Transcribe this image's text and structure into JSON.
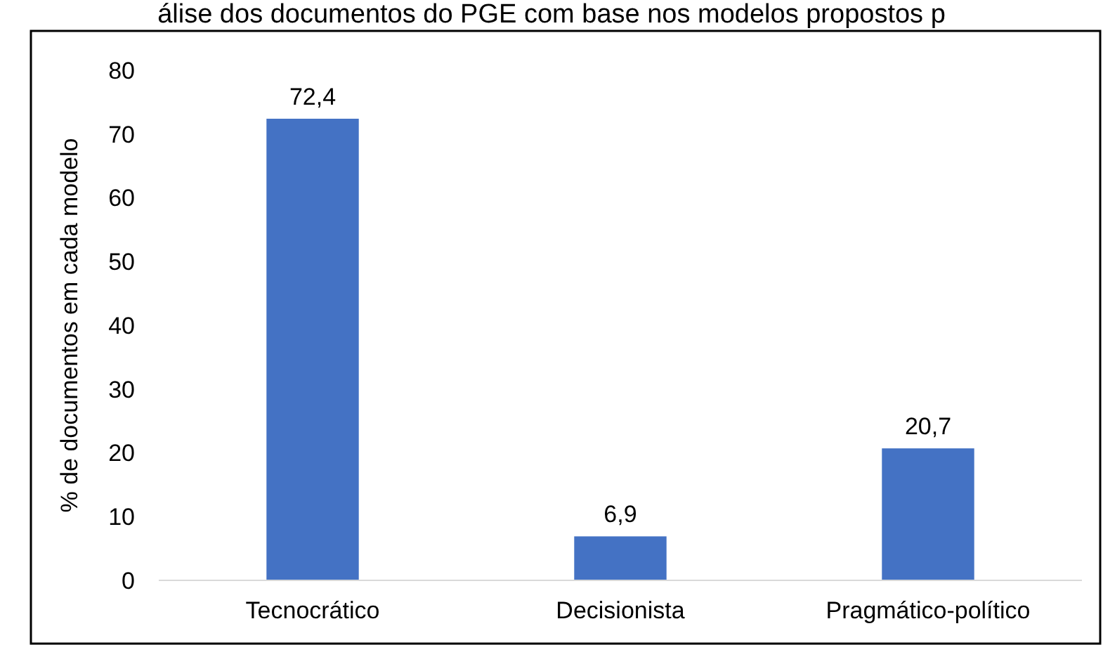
{
  "chart_data": {
    "type": "bar",
    "title": "álise dos documentos do PGE com base nos modelos propostos p",
    "ylabel": "% de documentos em cada modelo",
    "categories": [
      "Tecnocrático",
      "Decisionista",
      "Pragmático-político"
    ],
    "values": [
      72.4,
      6.9,
      20.7
    ],
    "value_labels": [
      "72,4",
      "6,9",
      "20,7"
    ],
    "color": "#4472c4",
    "ylim": [
      0,
      80
    ],
    "yticks": [
      0,
      10,
      20,
      30,
      40,
      50,
      60,
      70,
      80
    ],
    "grid": false
  }
}
